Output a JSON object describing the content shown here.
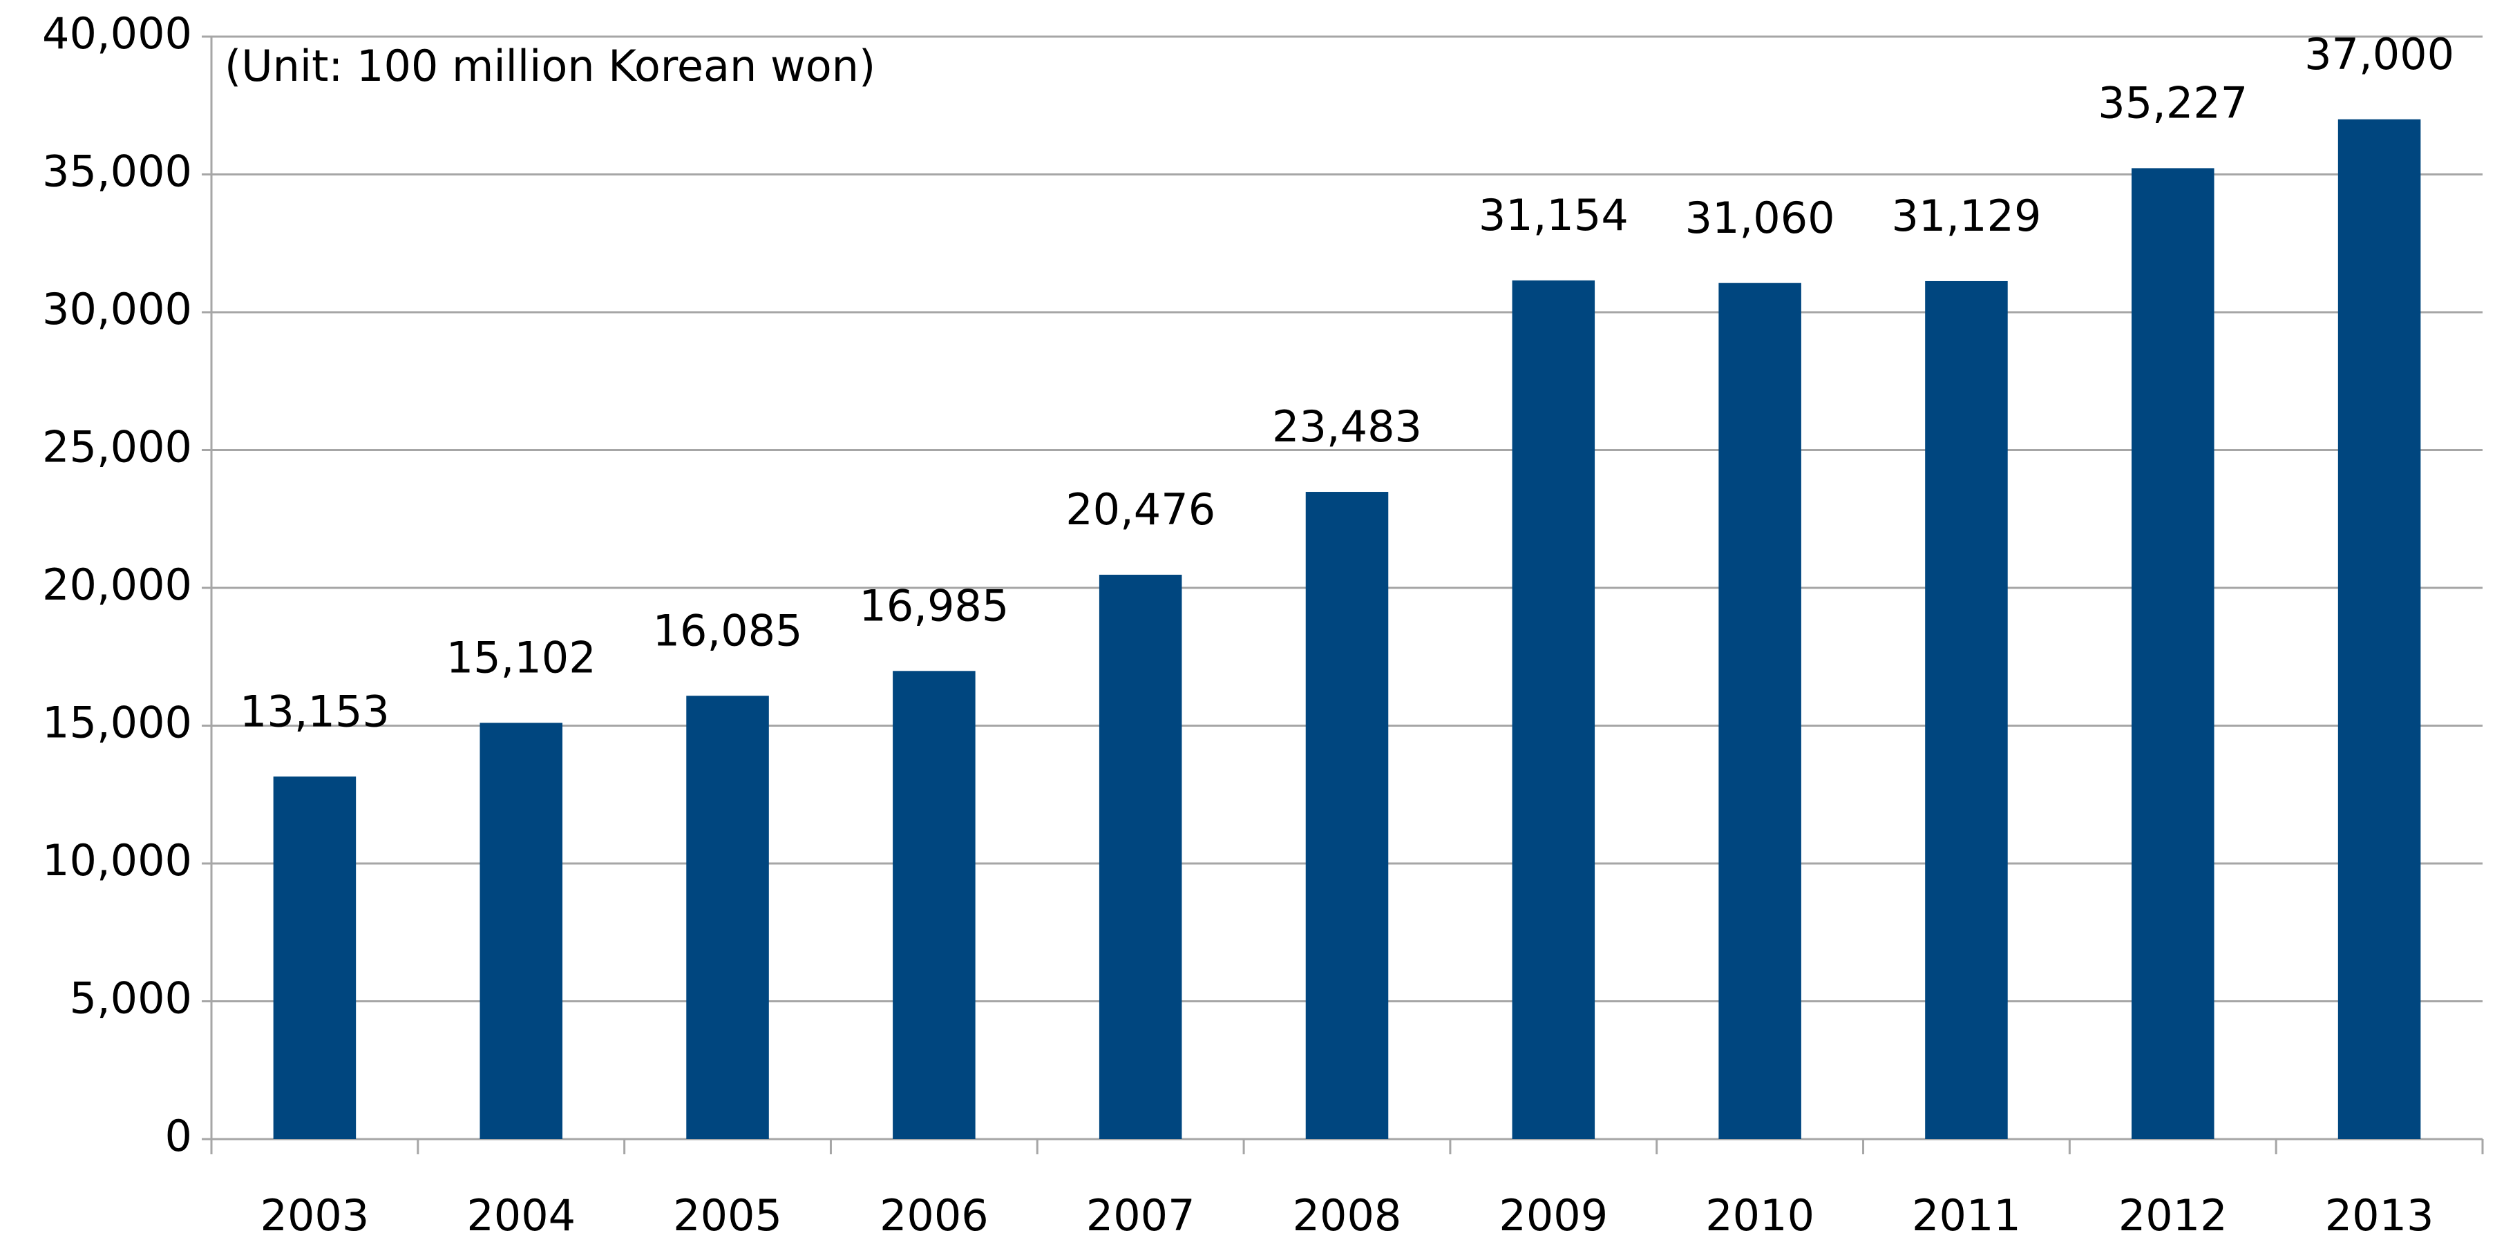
{
  "chart_data": {
    "type": "bar",
    "annotation": "(Unit: 100 million Korean won)",
    "categories": [
      "2003",
      "2004",
      "2005",
      "2006",
      "2007",
      "2008",
      "2009",
      "2010",
      "2011",
      "2012",
      "2013"
    ],
    "values": [
      13153,
      15102,
      16085,
      16985,
      20476,
      23483,
      31154,
      31060,
      31129,
      35227,
      37000
    ],
    "value_labels": [
      "13,153",
      "15,102",
      "16,085",
      "16,985",
      "20,476",
      "23,483",
      "31,154",
      "31,060",
      "31,129",
      "35,227",
      "37,000"
    ],
    "color": "#00467f",
    "ylim": [
      0,
      40000
    ],
    "yticks": [
      0,
      {
        "value": 5000,
        "label": "5,000"
      },
      {
        "value": 10000,
        "label": "10,000"
      },
      {
        "value": 15000,
        "label": "15,000"
      },
      {
        "value": 20000,
        "label": "20,000"
      },
      {
        "value": 25000,
        "label": "25,000"
      },
      {
        "value": 30000,
        "label": "30,000"
      },
      {
        "value": 35000,
        "label": "35,000"
      },
      {
        "value": 40000,
        "label": "40,000"
      }
    ],
    "grid": true
  }
}
